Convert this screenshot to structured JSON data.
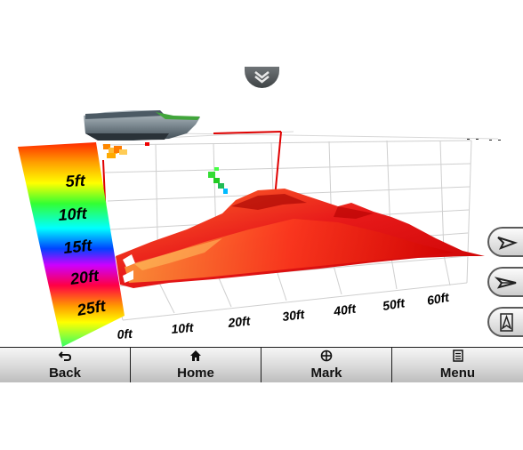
{
  "depth_scale": {
    "labels": [
      "5ft",
      "10ft",
      "15ft",
      "20ft",
      "25ft"
    ]
  },
  "distance_axis": {
    "labels": [
      "0ft",
      "10ft",
      "20ft",
      "30ft",
      "40ft",
      "50ft",
      "60ft"
    ]
  },
  "nav": {
    "back": {
      "label": "Back",
      "icon": "back-arrow-icon"
    },
    "home": {
      "label": "Home",
      "icon": "home-icon"
    },
    "mark": {
      "label": "Mark",
      "icon": "mark-waypoint-icon"
    },
    "menu": {
      "label": "Menu",
      "icon": "menu-icon"
    }
  },
  "side_buttons": [
    {
      "name": "view-rotate-left-button",
      "icon": "boat-view-icon"
    },
    {
      "name": "view-rotate-right-button",
      "icon": "boat-view-side-icon"
    },
    {
      "name": "north-up-button",
      "icon": "north-arrow-icon"
    }
  ],
  "colors": {
    "surface": "#e01818",
    "surface_highlight": "#ff7a1a",
    "nav_background": "#1c1c1c"
  }
}
